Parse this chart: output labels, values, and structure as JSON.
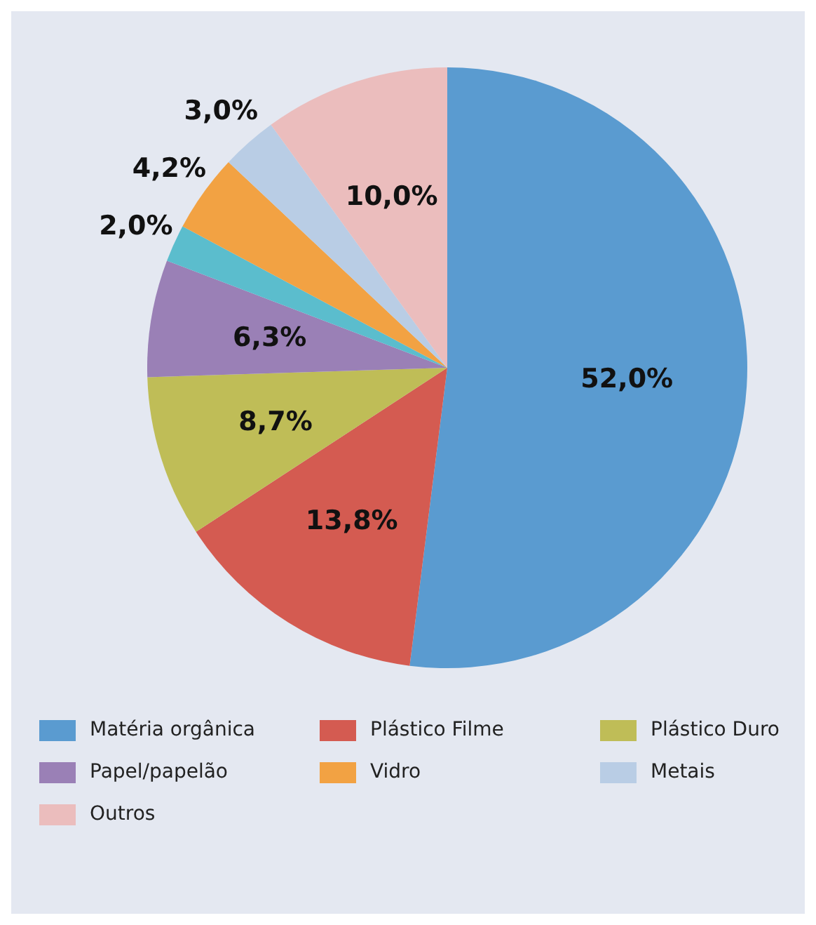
{
  "chart_data": {
    "type": "pie",
    "categories": [
      "Matéria orgânica",
      "Plástico Filme",
      "Plástico Duro",
      "Papel/papelão",
      null,
      "Vidro",
      "Metais",
      "Outros"
    ],
    "values": [
      52.0,
      13.8,
      8.7,
      6.3,
      2.0,
      4.2,
      3.0,
      10.0
    ],
    "colors": [
      "#5a9bd0",
      "#d45b51",
      "#bfbd57",
      "#9a80b6",
      "#5bbdcd",
      "#f2a243",
      "#b9cde5",
      "#ebbdbd"
    ],
    "value_labels": [
      "52,0%",
      "13,8%",
      "8,7%",
      "6,3%",
      "2,0%",
      "4,2%",
      "3,0%",
      "10,0%"
    ],
    "legend": "bottom"
  }
}
